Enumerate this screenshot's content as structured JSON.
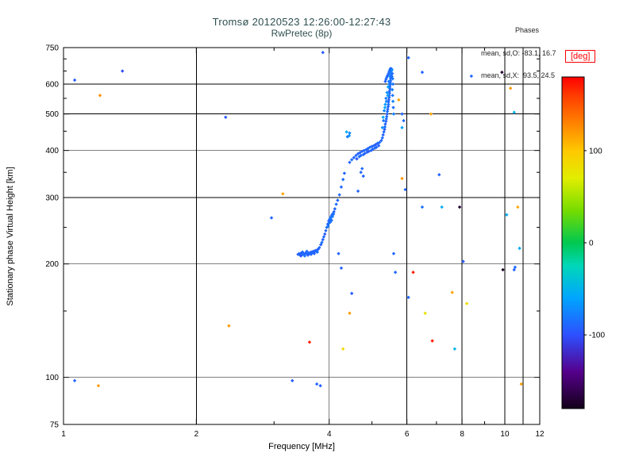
{
  "title": {
    "line1": "Tromsø 20120523 12:26:00-12:27:43",
    "line2": "RwPretec (8p)"
  },
  "stats": {
    "header": "Phases",
    "line1": "mean, sd,O: -83.1, 16.7",
    "line2": "mean, sd,X:  93.5, 24.5"
  },
  "axes": {
    "x": {
      "label": "Frequency [MHz]",
      "scale": "log",
      "min": 1,
      "max": 12,
      "ticks": [
        1,
        2,
        4,
        6,
        8,
        10,
        12
      ],
      "minor_ticks": [
        3,
        5,
        7,
        9,
        11
      ],
      "gridlines": [
        2,
        4,
        6,
        8,
        10,
        11
      ]
    },
    "y": {
      "label": "Stationary phase Virtual Height [km]",
      "scale": "log",
      "min": 75,
      "max": 750,
      "ticks": [
        75,
        100,
        200,
        300,
        400,
        500,
        600,
        750
      ],
      "minor_ticks": [
        150,
        250,
        350,
        450,
        550,
        650,
        700
      ],
      "gridlines": [
        100,
        200,
        300,
        400,
        500,
        600
      ]
    }
  },
  "colorbar": {
    "label": "[deg]",
    "label_color": "#ff0000",
    "min": -180,
    "max": 180,
    "ticks": [
      100,
      0,
      -100
    ],
    "anchors": [
      [
        -180,
        "#140019"
      ],
      [
        -140,
        "#55008c"
      ],
      [
        -100,
        "#2d50ff"
      ],
      [
        -60,
        "#00a5ff"
      ],
      [
        -25,
        "#00d7b9"
      ],
      [
        0,
        "#00c850"
      ],
      [
        35,
        "#76dc00"
      ],
      [
        70,
        "#e1ee00"
      ],
      [
        100,
        "#ffc800"
      ],
      [
        130,
        "#ff8200"
      ],
      [
        160,
        "#ff3c00"
      ],
      [
        180,
        "#ff0000"
      ]
    ]
  },
  "chart_data": {
    "type": "scatter",
    "title": "Tromsø 20120523 12:26:00-12:27:43 / RwPretec (8p)",
    "xlabel": "Frequency [MHz]",
    "ylabel": "Stationary phase Virtual Height [km]",
    "xscale": "log",
    "yscale": "log",
    "xlim": [
      1,
      12
    ],
    "ylim": [
      75,
      750
    ],
    "color_dimension": "phase [deg]",
    "color_range": [
      -180,
      180
    ],
    "grid": true,
    "points": [
      [
        3.4,
        212,
        -95
      ],
      [
        3.42,
        213,
        -88
      ],
      [
        3.44,
        211,
        -92
      ],
      [
        3.46,
        214,
        -90
      ],
      [
        3.48,
        212,
        -85
      ],
      [
        3.5,
        213,
        -93
      ],
      [
        3.52,
        212,
        -87
      ],
      [
        3.54,
        214,
        -91
      ],
      [
        3.56,
        213,
        -89
      ],
      [
        3.58,
        212,
        -94
      ],
      [
        3.6,
        214,
        -86
      ],
      [
        3.62,
        213,
        -90
      ],
      [
        3.64,
        215,
        -92
      ],
      [
        3.66,
        214,
        -88
      ],
      [
        3.68,
        216,
        -91
      ],
      [
        3.7,
        215,
        -89
      ],
      [
        3.72,
        217,
        -93
      ],
      [
        3.74,
        216,
        -87
      ],
      [
        3.76,
        218,
        -90
      ],
      [
        3.78,
        219,
        -92
      ],
      [
        3.8,
        221,
        -88
      ],
      [
        3.45,
        210,
        -97
      ],
      [
        3.52,
        210,
        -84
      ],
      [
        3.58,
        211,
        -91
      ],
      [
        3.64,
        212,
        -89
      ],
      [
        3.7,
        213,
        -94
      ],
      [
        3.76,
        215,
        -86
      ],
      [
        3.48,
        215,
        -90
      ],
      [
        3.56,
        216,
        -88
      ],
      [
        3.83,
        225,
        -90
      ],
      [
        3.85,
        228,
        -85
      ],
      [
        3.87,
        232,
        -92
      ],
      [
        3.89,
        236,
        -88
      ],
      [
        3.91,
        240,
        -95
      ],
      [
        3.93,
        245,
        -90
      ],
      [
        3.95,
        250,
        -86
      ],
      [
        3.97,
        255,
        -91
      ],
      [
        3.99,
        260,
        -89
      ],
      [
        4.01,
        263,
        -93
      ],
      [
        4.03,
        266,
        -87
      ],
      [
        4.05,
        268,
        -90
      ],
      [
        4.02,
        258,
        -92
      ],
      [
        4.04,
        262,
        -88
      ],
      [
        4.06,
        270,
        -91
      ],
      [
        4.08,
        272,
        -85
      ],
      [
        4.1,
        275,
        -90
      ],
      [
        3.98,
        252,
        -78
      ],
      [
        4.0,
        257,
        -82
      ],
      [
        4.02,
        264,
        -80
      ],
      [
        4.05,
        261,
        -84
      ],
      [
        4.07,
        267,
        -79
      ],
      [
        4.09,
        271,
        -83
      ],
      [
        4.12,
        280,
        -90
      ],
      [
        4.15,
        288,
        -86
      ],
      [
        4.18,
        295,
        -92
      ],
      [
        4.22,
        305,
        -88
      ],
      [
        4.26,
        320,
        -91
      ],
      [
        4.3,
        335,
        -87
      ],
      [
        4.33,
        348,
        -90
      ],
      [
        4.65,
        312,
        -90
      ],
      [
        4.72,
        350,
        -89
      ],
      [
        4.78,
        342,
        -91
      ],
      [
        4.75,
        358,
        -86
      ],
      [
        4.45,
        372,
        -90
      ],
      [
        4.5,
        378,
        -85
      ],
      [
        4.55,
        383,
        -92
      ],
      [
        4.6,
        388,
        -88
      ],
      [
        4.62,
        380,
        -95
      ],
      [
        4.65,
        392,
        -90
      ],
      [
        4.68,
        385,
        -86
      ],
      [
        4.7,
        395,
        -91
      ],
      [
        4.72,
        388,
        -89
      ],
      [
        4.75,
        398,
        -93
      ],
      [
        4.78,
        390,
        -87
      ],
      [
        4.8,
        400,
        -90
      ],
      [
        4.82,
        393,
        -92
      ],
      [
        4.85,
        402,
        -88
      ],
      [
        4.88,
        396,
        -91
      ],
      [
        4.9,
        405,
        -89
      ],
      [
        4.92,
        398,
        -94
      ],
      [
        4.95,
        408,
        -86
      ],
      [
        4.98,
        400,
        -90
      ],
      [
        5.0,
        410,
        -92
      ],
      [
        5.02,
        403,
        -88
      ],
      [
        5.05,
        412,
        -91
      ],
      [
        5.08,
        406,
        -89
      ],
      [
        5.1,
        415,
        -93
      ],
      [
        5.12,
        408,
        -87
      ],
      [
        5.15,
        418,
        -90
      ],
      [
        5.18,
        412,
        -92
      ],
      [
        5.2,
        420,
        -88
      ],
      [
        4.38,
        448,
        -55
      ],
      [
        4.4,
        435,
        -80
      ],
      [
        4.44,
        438,
        -70
      ],
      [
        4.45,
        445,
        -75
      ],
      [
        5.25,
        425,
        -90
      ],
      [
        5.28,
        432,
        -86
      ],
      [
        5.3,
        440,
        -91
      ],
      [
        5.32,
        448,
        -88
      ],
      [
        5.34,
        455,
        -93
      ],
      [
        5.35,
        462,
        -87
      ],
      [
        5.36,
        470,
        -90
      ],
      [
        5.38,
        478,
        -92
      ],
      [
        5.39,
        485,
        -85
      ],
      [
        5.4,
        492,
        -89
      ],
      [
        5.41,
        500,
        -91
      ],
      [
        5.42,
        508,
        -88
      ],
      [
        5.43,
        515,
        -90
      ],
      [
        5.44,
        523,
        -93
      ],
      [
        5.45,
        530,
        -86
      ],
      [
        5.45,
        538,
        -90
      ],
      [
        5.46,
        545,
        -92
      ],
      [
        5.47,
        553,
        -88
      ],
      [
        5.47,
        560,
        -91
      ],
      [
        5.48,
        568,
        -89
      ],
      [
        5.48,
        575,
        -87
      ],
      [
        5.49,
        583,
        -92
      ],
      [
        5.49,
        590,
        -90
      ],
      [
        5.5,
        598,
        -88
      ],
      [
        5.5,
        605,
        -91
      ],
      [
        5.51,
        612,
        -86
      ],
      [
        5.51,
        620,
        -90
      ],
      [
        5.52,
        628,
        -93
      ],
      [
        5.52,
        635,
        -89
      ],
      [
        5.53,
        642,
        -87
      ],
      [
        5.53,
        650,
        -91
      ],
      [
        5.54,
        658,
        -90
      ],
      [
        5.3,
        490,
        -60
      ],
      [
        5.33,
        510,
        -75
      ],
      [
        5.36,
        530,
        -65
      ],
      [
        5.38,
        550,
        -80
      ],
      [
        5.41,
        570,
        -70
      ],
      [
        5.44,
        590,
        -62
      ],
      [
        5.46,
        610,
        -78
      ],
      [
        5.48,
        630,
        -68
      ],
      [
        5.5,
        648,
        -72
      ],
      [
        5.28,
        460,
        -70
      ],
      [
        5.31,
        480,
        -82
      ],
      [
        5.35,
        520,
        -58
      ],
      [
        5.39,
        540,
        -76
      ],
      [
        5.43,
        560,
        -64
      ],
      [
        5.47,
        600,
        -80
      ],
      [
        5.52,
        645,
        -74
      ],
      [
        5.55,
        655,
        -66
      ],
      [
        5.56,
        640,
        -85
      ],
      [
        5.57,
        620,
        -79
      ],
      [
        5.58,
        600,
        -83
      ],
      [
        5.56,
        580,
        -77
      ],
      [
        5.57,
        560,
        -81
      ],
      [
        5.58,
        540,
        -75
      ],
      [
        5.59,
        520,
        -84
      ],
      [
        5.6,
        500,
        -78
      ],
      [
        5.45,
        640,
        -88
      ],
      [
        5.47,
        648,
        -84
      ],
      [
        5.49,
        655,
        -90
      ],
      [
        5.51,
        660,
        -86
      ],
      [
        5.42,
        632,
        -92
      ],
      [
        5.4,
        625,
        -87
      ],
      [
        5.38,
        618,
        -89
      ],
      [
        5.36,
        610,
        -91
      ],
      [
        5.53,
        635,
        -83
      ],
      [
        5.55,
        628,
        -88
      ],
      [
        5.9,
        480,
        -88
      ],
      [
        5.85,
        460,
        -60
      ],
      [
        1.06,
        615,
        -95
      ],
      [
        1.21,
        560,
        125
      ],
      [
        1.36,
        650,
        -100
      ],
      [
        2.33,
        490,
        -95
      ],
      [
        2.96,
        265,
        -90
      ],
      [
        3.14,
        307,
        115
      ],
      [
        2.37,
        137,
        120
      ],
      [
        3.3,
        98,
        -95
      ],
      [
        3.75,
        96,
        -90
      ],
      [
        3.82,
        95,
        -95
      ],
      [
        3.61,
        124,
        170
      ],
      [
        4.3,
        119,
        85
      ],
      [
        4.45,
        148,
        120
      ],
      [
        4.5,
        167,
        -95
      ],
      [
        4.2,
        213,
        -90
      ],
      [
        4.26,
        195,
        -92
      ],
      [
        5.6,
        213,
        -90
      ],
      [
        5.65,
        190,
        -88
      ],
      [
        5.75,
        545,
        115
      ],
      [
        5.85,
        500,
        -90
      ],
      [
        5.85,
        337,
        120
      ],
      [
        5.95,
        315,
        -92
      ],
      [
        6.05,
        163,
        -88
      ],
      [
        6.2,
        190,
        170
      ],
      [
        6.5,
        645,
        -90
      ],
      [
        6.5,
        283,
        -85
      ],
      [
        6.6,
        148,
        80
      ],
      [
        6.85,
        125,
        170
      ],
      [
        7.1,
        345,
        -90
      ],
      [
        7.2,
        283,
        -55
      ],
      [
        7.6,
        168,
        115
      ],
      [
        7.7,
        119,
        -50
      ],
      [
        7.9,
        283,
        -170
      ],
      [
        8.05,
        203,
        -95
      ],
      [
        8.2,
        157,
        85
      ],
      [
        8.4,
        630,
        -90
      ],
      [
        9.85,
        645,
        -170
      ],
      [
        9.9,
        193,
        -175
      ],
      [
        10.1,
        270,
        -55
      ],
      [
        10.3,
        585,
        120
      ],
      [
        10.5,
        505,
        -50
      ],
      [
        10.5,
        193,
        -92
      ],
      [
        10.55,
        196,
        -88
      ],
      [
        10.7,
        283,
        115
      ],
      [
        10.8,
        220,
        -55
      ],
      [
        6.8,
        500,
        115
      ],
      [
        1.2,
        95,
        120
      ],
      [
        1.06,
        98,
        -90
      ],
      [
        10.9,
        96,
        120
      ],
      [
        6.05,
        705,
        -90
      ],
      [
        3.87,
        728,
        -95
      ]
    ]
  }
}
